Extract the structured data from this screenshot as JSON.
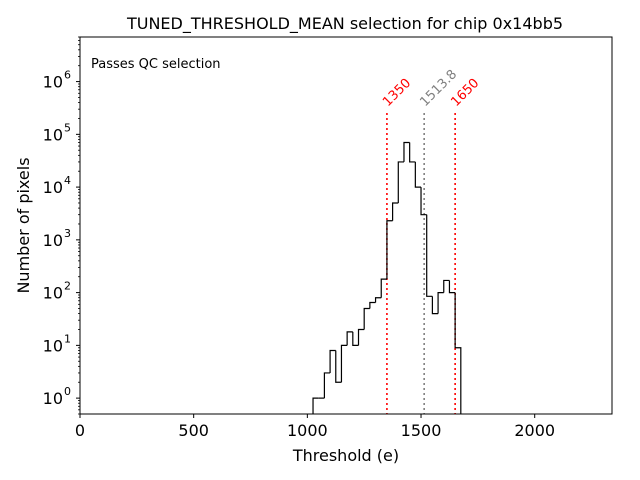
{
  "chart_data": {
    "type": "histogram",
    "title": "TUNED_THRESHOLD_MEAN selection for chip 0x14bb5",
    "xlabel": "Threshold (e)",
    "ylabel": "Number of pixels",
    "xlim": [
      0,
      2340
    ],
    "ylim": [
      0.5,
      7000000
    ],
    "yscale": "log",
    "x_ticks": [
      {
        "value": 0,
        "label": "0"
      },
      {
        "value": 500,
        "label": "500"
      },
      {
        "value": 1000,
        "label": "1000"
      },
      {
        "value": 1500,
        "label": "1500"
      },
      {
        "value": 2000,
        "label": "2000"
      }
    ],
    "y_ticks": [
      {
        "value": 1,
        "base": "10",
        "exp": "0"
      },
      {
        "value": 10,
        "base": "10",
        "exp": "1"
      },
      {
        "value": 100,
        "base": "10",
        "exp": "2"
      },
      {
        "value": 1000,
        "base": "10",
        "exp": "3"
      },
      {
        "value": 10000,
        "base": "10",
        "exp": "4"
      },
      {
        "value": 100000,
        "base": "10",
        "exp": "5"
      },
      {
        "value": 1000000,
        "base": "10",
        "exp": "6"
      }
    ],
    "bin_width": 25,
    "bin_start": 1025,
    "counts": [
      1,
      1,
      3,
      8,
      2,
      10,
      18,
      10,
      20,
      50,
      65,
      80,
      180,
      2300,
      5000,
      30000,
      70000,
      30000,
      10000,
      3000,
      85,
      40,
      100,
      170,
      100,
      9
    ],
    "markers": [
      {
        "value": 1350,
        "label": "1350",
        "color": "#ff0000",
        "style": "dotted"
      },
      {
        "value": 1513.8,
        "label": "1513.8",
        "color": "#808080",
        "style": "dotted"
      },
      {
        "value": 1650,
        "label": "1650",
        "color": "#ff0000",
        "style": "dotted"
      }
    ],
    "annotation": {
      "text": "Passes QC selection",
      "color": "#008000"
    },
    "line_color": "#000000"
  }
}
